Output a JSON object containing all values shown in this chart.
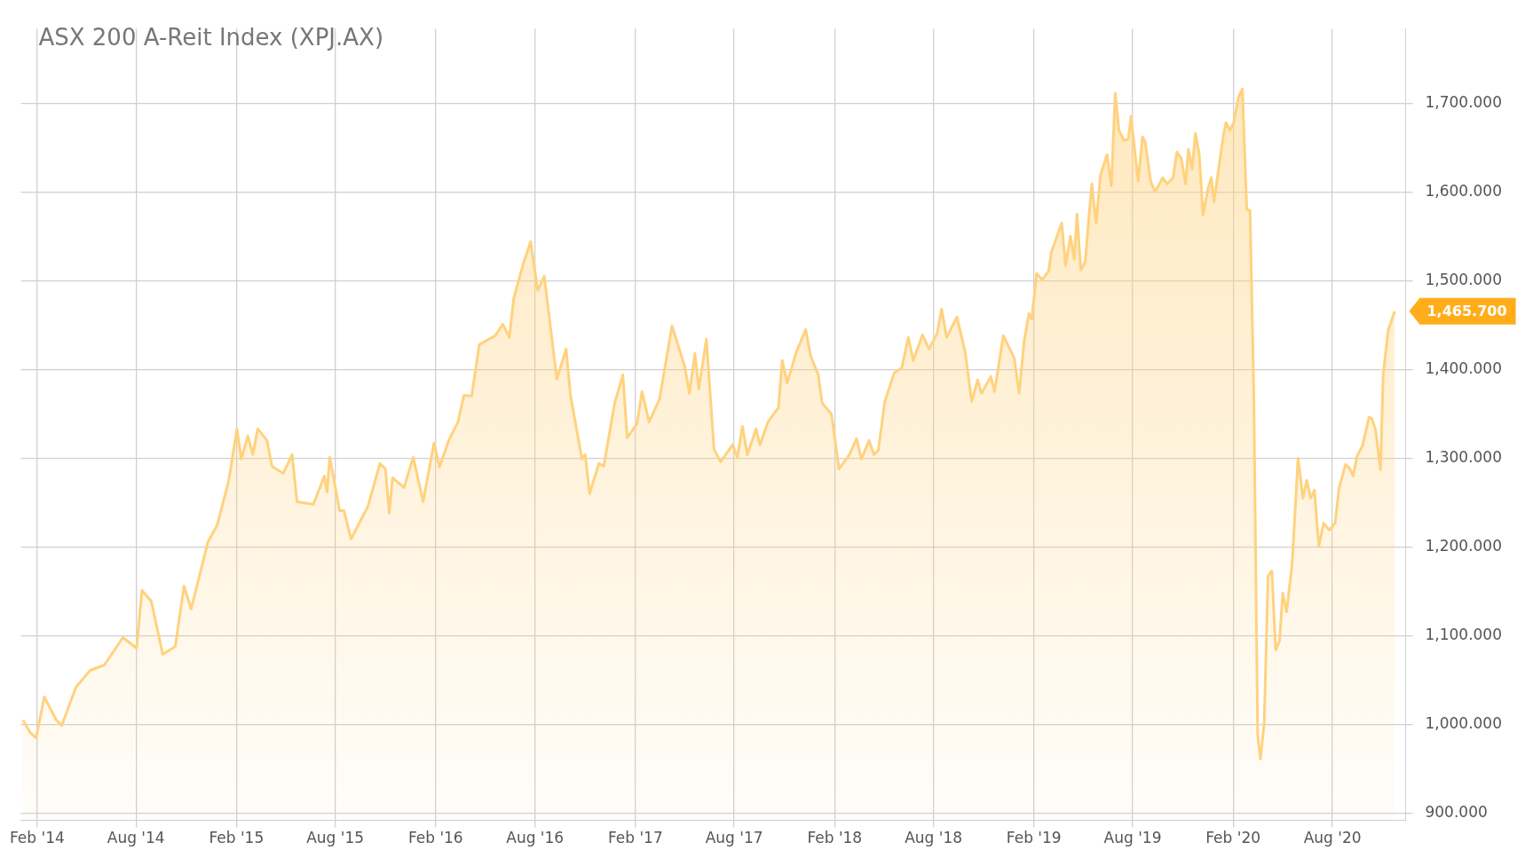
{
  "chart_data": {
    "type": "area",
    "title": "ASX 200 A-Reit Index (XPJ.AX)",
    "xlim": [
      "2014-01-02",
      "2020-12-13"
    ],
    "xticks": [
      {
        "value": "2014-02",
        "label": "Feb '14"
      },
      {
        "value": "2014-08",
        "label": "Aug '14"
      },
      {
        "value": "2015-02",
        "label": "Feb '15"
      },
      {
        "value": "2015-08",
        "label": "Aug '15"
      },
      {
        "value": "2016-02",
        "label": "Feb '16"
      },
      {
        "value": "2016-08",
        "label": "Aug '16"
      },
      {
        "value": "2017-02",
        "label": "Feb '17"
      },
      {
        "value": "2017-08",
        "label": "Aug '17"
      },
      {
        "value": "2018-02",
        "label": "Feb '18"
      },
      {
        "value": "2018-08",
        "label": "Aug '18"
      },
      {
        "value": "2019-02",
        "label": "Feb '19"
      },
      {
        "value": "2019-08",
        "label": "Aug '19"
      },
      {
        "value": "2020-02",
        "label": "Feb '20"
      },
      {
        "value": "2020-08",
        "label": "Aug '20"
      }
    ],
    "ylim": [
      892,
      1784
    ],
    "yticks": [
      {
        "value": 900,
        "label": "900.000"
      },
      {
        "value": 1000,
        "label": "1,000.000"
      },
      {
        "value": 1100,
        "label": "1,100.000"
      },
      {
        "value": 1200,
        "label": "1,200.000"
      },
      {
        "value": 1300,
        "label": "1,300.000"
      },
      {
        "value": 1400,
        "label": "1,400.000"
      },
      {
        "value": 1500,
        "label": "1,500.000"
      },
      {
        "value": 1600,
        "label": "1,600.000"
      },
      {
        "value": 1700,
        "label": "1,700.000"
      }
    ],
    "grid": true,
    "annotations": [
      {
        "text": "1,465.700",
        "x": "2020-11-23",
        "y": 1465.7
      }
    ],
    "x": [
      "2014-01-06",
      "2014-01-19",
      "2014-01-30",
      "2014-02-14",
      "2014-03-08",
      "2014-03-18",
      "2014-04-13",
      "2014-05-09",
      "2014-06-04",
      "2014-07-08",
      "2014-08-02",
      "2014-08-12",
      "2014-08-29",
      "2014-09-19",
      "2014-10-12",
      "2014-10-28",
      "2014-11-10",
      "2014-12-11",
      "2014-12-28",
      "2015-01-18",
      "2015-02-02",
      "2015-02-10",
      "2015-02-22",
      "2015-03-03",
      "2015-03-12",
      "2015-03-29",
      "2015-04-07",
      "2015-04-28",
      "2015-05-14",
      "2015-05-23",
      "2015-06-22",
      "2015-07-12",
      "2015-07-17",
      "2015-07-22",
      "2015-08-09",
      "2015-08-17",
      "2015-08-30",
      "2015-09-30",
      "2015-10-22",
      "2015-11-01",
      "2015-11-08",
      "2015-11-14",
      "2015-12-05",
      "2015-12-22",
      "2016-01-09",
      "2016-01-29",
      "2016-02-08",
      "2016-02-25",
      "2016-03-13",
      "2016-03-24",
      "2016-04-07",
      "2016-04-21",
      "2016-05-20",
      "2016-06-03",
      "2016-06-15",
      "2016-06-23",
      "2016-07-10",
      "2016-07-24",
      "2016-08-06",
      "2016-08-18",
      "2016-09-10",
      "2016-09-27",
      "2016-10-05",
      "2016-10-26",
      "2016-11-01",
      "2016-11-09",
      "2016-11-26",
      "2016-12-05",
      "2016-12-25",
      "2017-01-09",
      "2017-01-17",
      "2017-02-04",
      "2017-02-13",
      "2017-02-26",
      "2017-03-17",
      "2017-04-09",
      "2017-05-02",
      "2017-05-11",
      "2017-05-21",
      "2017-05-28",
      "2017-06-11",
      "2017-06-25",
      "2017-07-07",
      "2017-07-29",
      "2017-08-07",
      "2017-08-16",
      "2017-08-25",
      "2017-09-10",
      "2017-09-17",
      "2017-10-02",
      "2017-10-21",
      "2017-10-28",
      "2017-11-06",
      "2017-11-23",
      "2017-12-10",
      "2017-12-19",
      "2018-01-02",
      "2018-01-09",
      "2018-01-26",
      "2018-02-09",
      "2018-02-28",
      "2018-03-13",
      "2018-03-22",
      "2018-04-05",
      "2018-04-14",
      "2018-04-22",
      "2018-05-04",
      "2018-05-21",
      "2018-06-04",
      "2018-06-16",
      "2018-06-25",
      "2018-07-12",
      "2018-07-24",
      "2018-08-08",
      "2018-08-16",
      "2018-08-25",
      "2018-09-13",
      "2018-09-28",
      "2018-10-10",
      "2018-10-21",
      "2018-10-28",
      "2018-11-14",
      "2018-11-21",
      "2018-12-07",
      "2018-12-27",
      "2019-01-05",
      "2019-01-14",
      "2019-01-23",
      "2019-01-28",
      "2019-02-06",
      "2019-02-16",
      "2019-02-28",
      "2019-03-05",
      "2019-03-24",
      "2019-03-31",
      "2019-04-09",
      "2019-04-16",
      "2019-04-21",
      "2019-04-28",
      "2019-05-06",
      "2019-05-18",
      "2019-05-26",
      "2019-06-03",
      "2019-06-15",
      "2019-06-23",
      "2019-06-30",
      "2019-07-07",
      "2019-07-16",
      "2019-07-24",
      "2019-07-29",
      "2019-08-11",
      "2019-08-19",
      "2019-08-24",
      "2019-09-03",
      "2019-09-11",
      "2019-09-25",
      "2019-10-03",
      "2019-10-14",
      "2019-10-21",
      "2019-10-29",
      "2019-11-06",
      "2019-11-11",
      "2019-11-18",
      "2019-11-24",
      "2019-12-01",
      "2019-12-08",
      "2019-12-17",
      "2019-12-23",
      "2019-12-28",
      "2020-01-14",
      "2020-01-19",
      "2020-01-26",
      "2020-02-02",
      "2020-02-11",
      "2020-02-18",
      "2020-02-26",
      "2020-03-03",
      "2020-03-10",
      "2020-03-17",
      "2020-03-22",
      "2020-03-29",
      "2020-04-05",
      "2020-04-12",
      "2020-04-19",
      "2020-04-26",
      "2020-05-02",
      "2020-05-09",
      "2020-05-19",
      "2020-05-30",
      "2020-06-08",
      "2020-06-15",
      "2020-06-22",
      "2020-06-29",
      "2020-07-07",
      "2020-07-16",
      "2020-07-26",
      "2020-08-06",
      "2020-08-13",
      "2020-08-25",
      "2020-09-01",
      "2020-09-08",
      "2020-09-15",
      "2020-09-25",
      "2020-10-07",
      "2020-10-12",
      "2020-10-19",
      "2020-10-28",
      "2020-11-02",
      "2020-11-11",
      "2020-11-23"
    ],
    "series": [
      {
        "color": "#ffd27f",
        "values": [
          1005,
          991,
          985,
          1031,
          1005,
          999,
          1042,
          1061,
          1067,
          1098,
          1086,
          1151,
          1139,
          1079,
          1088,
          1156,
          1130,
          1206,
          1225,
          1275,
          1333,
          1299,
          1325,
          1304,
          1333,
          1320,
          1291,
          1283,
          1304,
          1251,
          1248,
          1280,
          1262,
          1301,
          1241,
          1241,
          1209,
          1246,
          1294,
          1288,
          1238,
          1278,
          1267,
          1301,
          1251,
          1317,
          1290,
          1320,
          1341,
          1371,
          1370,
          1428,
          1438,
          1451,
          1436,
          1480,
          1518,
          1544,
          1489,
          1505,
          1389,
          1423,
          1371,
          1299,
          1304,
          1260,
          1294,
          1291,
          1362,
          1394,
          1323,
          1339,
          1375,
          1341,
          1366,
          1449,
          1404,
          1373,
          1418,
          1378,
          1434,
          1310,
          1296,
          1315,
          1301,
          1336,
          1304,
          1333,
          1315,
          1341,
          1357,
          1410,
          1385,
          1420,
          1445,
          1415,
          1394,
          1362,
          1350,
          1288,
          1304,
          1322,
          1299,
          1320,
          1304,
          1309,
          1364,
          1396,
          1402,
          1436,
          1410,
          1439,
          1423,
          1441,
          1468,
          1436,
          1459,
          1420,
          1364,
          1388,
          1373,
          1392,
          1375,
          1438,
          1413,
          1373,
          1431,
          1463,
          1457,
          1508,
          1501,
          1511,
          1532,
          1565,
          1517,
          1550,
          1524,
          1575,
          1512,
          1521,
          1609,
          1565,
          1619,
          1642,
          1607,
          1711,
          1669,
          1658,
          1660,
          1685,
          1612,
          1662,
          1656,
          1612,
          1600,
          1616,
          1609,
          1616,
          1645,
          1638,
          1609,
          1648,
          1626,
          1666,
          1642,
          1574,
          1604,
          1616,
          1589,
          1663,
          1678,
          1669,
          1678,
          1707,
          1716,
          1580,
          1579,
          1370,
          988,
          961,
          1002,
          1167,
          1173,
          1084,
          1094,
          1148,
          1127,
          1180,
          1300,
          1255,
          1275,
          1255,
          1264,
          1201,
          1227,
          1219,
          1227,
          1266,
          1293,
          1289,
          1280,
          1302,
          1314,
          1346,
          1345,
          1332,
          1287,
          1394,
          1444,
          1465.7
        ]
      }
    ]
  }
}
